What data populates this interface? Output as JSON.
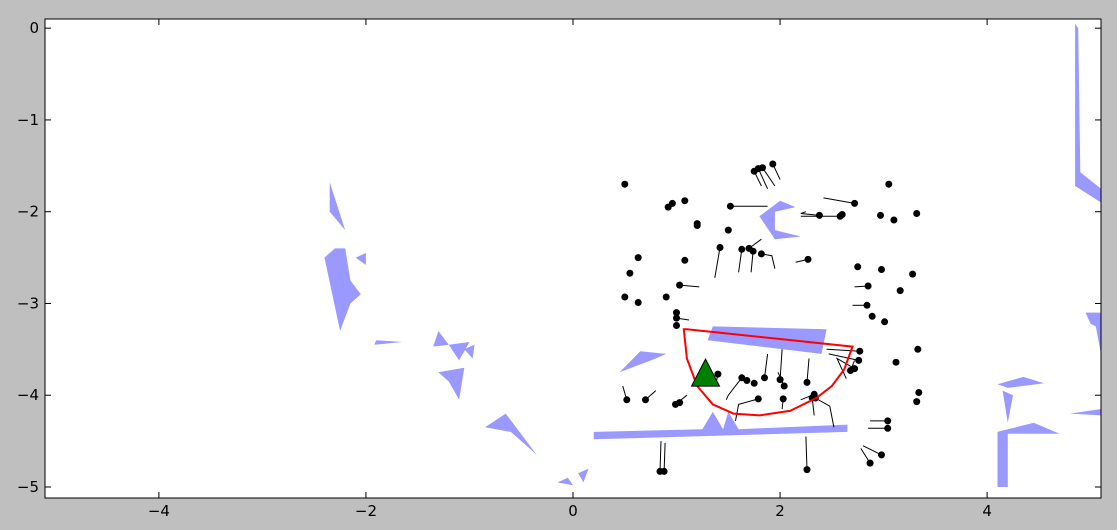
{
  "chart_data": {
    "type": "scatter",
    "title": "",
    "xlabel": "",
    "ylabel": "",
    "xlim": [
      -5.1,
      5.1
    ],
    "ylim": [
      -5.12,
      0.1
    ],
    "xticks": [
      -4,
      -2,
      0,
      2,
      4
    ],
    "xtick_labels": [
      "−4",
      "−2",
      "0",
      "2",
      "4"
    ],
    "yticks": [
      0,
      -1,
      -2,
      -3,
      -4,
      -5
    ],
    "ytick_labels": [
      "0",
      "−1",
      "−2",
      "−3",
      "−4",
      "−5"
    ],
    "grid": false,
    "colors": {
      "obstacle": "#9999ff",
      "boundary": "#ff0000",
      "agent": "#008000",
      "pedestrian": "#000000",
      "figure_bg": "#bfbfbf",
      "axes_bg": "#ffffff"
    },
    "obstacles": [
      [
        [
          -2.35,
          -1.68
        ],
        [
          -2.2,
          -2.2
        ],
        [
          -2.35,
          -2.0
        ]
      ],
      [
        [
          -2.3,
          -2.4
        ],
        [
          -2.2,
          -2.4
        ],
        [
          -2.15,
          -2.75
        ],
        [
          -2.05,
          -2.9
        ],
        [
          -2.15,
          -3.0
        ],
        [
          -2.25,
          -3.3
        ],
        [
          -2.4,
          -2.5
        ]
      ],
      [
        [
          -2.1,
          -2.5
        ],
        [
          -2.0,
          -2.45
        ],
        [
          -2.0,
          -2.58
        ]
      ],
      [
        [
          -1.9,
          -3.4
        ],
        [
          -1.65,
          -3.42
        ],
        [
          -1.92,
          -3.45
        ]
      ],
      [
        [
          -1.3,
          -3.3
        ],
        [
          -1.2,
          -3.45
        ],
        [
          -1.35,
          -3.47
        ]
      ],
      [
        [
          -1.2,
          -3.45
        ],
        [
          -1.0,
          -3.42
        ],
        [
          -1.1,
          -3.62
        ]
      ],
      [
        [
          -1.05,
          -3.5
        ],
        [
          -0.95,
          -3.45
        ],
        [
          -0.97,
          -3.6
        ]
      ],
      [
        [
          -1.3,
          -3.75
        ],
        [
          -1.05,
          -3.7
        ],
        [
          -1.1,
          -4.05
        ],
        [
          -1.2,
          -3.85
        ]
      ],
      [
        [
          -0.85,
          -4.35
        ],
        [
          -0.65,
          -4.2
        ],
        [
          -0.35,
          -4.65
        ],
        [
          -0.6,
          -4.4
        ]
      ],
      [
        [
          -0.15,
          -4.95
        ],
        [
          -0.05,
          -4.9
        ],
        [
          0.0,
          -4.98
        ]
      ],
      [
        [
          0.05,
          -4.85
        ],
        [
          0.15,
          -4.8
        ],
        [
          0.1,
          -4.95
        ]
      ],
      [
        [
          0.45,
          -3.75
        ],
        [
          0.65,
          -3.52
        ],
        [
          0.9,
          -3.55
        ],
        [
          0.8,
          -3.6
        ]
      ],
      [
        [
          0.2,
          -4.4
        ],
        [
          1.25,
          -4.37
        ],
        [
          1.35,
          -4.18
        ],
        [
          1.45,
          -4.37
        ],
        [
          1.5,
          -4.18
        ],
        [
          1.6,
          -4.37
        ],
        [
          2.65,
          -4.32
        ],
        [
          2.65,
          -4.4
        ],
        [
          0.2,
          -4.48
        ]
      ],
      [
        [
          1.35,
          -3.25
        ],
        [
          2.45,
          -3.28
        ],
        [
          2.4,
          -3.55
        ],
        [
          1.3,
          -3.4
        ]
      ],
      [
        [
          1.8,
          -2.05
        ],
        [
          2.0,
          -1.88
        ],
        [
          2.15,
          -1.95
        ],
        [
          1.95,
          -2.0
        ],
        [
          1.95,
          -2.2
        ],
        [
          2.2,
          -2.27
        ],
        [
          1.95,
          -2.3
        ]
      ],
      [
        [
          4.85,
          0.05
        ],
        [
          4.88,
          0.0
        ],
        [
          4.9,
          -1.57
        ],
        [
          5.1,
          -1.75
        ],
        [
          5.1,
          -1.9
        ],
        [
          4.85,
          -1.72
        ]
      ],
      [
        [
          4.95,
          -3.1
        ],
        [
          5.1,
          -3.1
        ],
        [
          5.1,
          -3.55
        ],
        [
          5.05,
          -3.25
        ],
        [
          5.0,
          -3.22
        ]
      ],
      [
        [
          4.1,
          -3.88
        ],
        [
          4.35,
          -3.8
        ],
        [
          4.55,
          -3.87
        ],
        [
          4.2,
          -3.92
        ]
      ],
      [
        [
          4.15,
          -3.95
        ],
        [
          4.25,
          -4.0
        ],
        [
          4.2,
          -4.3
        ]
      ],
      [
        [
          4.1,
          -4.4
        ],
        [
          4.45,
          -4.3
        ],
        [
          4.7,
          -4.42
        ],
        [
          4.2,
          -4.42
        ],
        [
          4.2,
          -5.0
        ],
        [
          4.1,
          -5.0
        ]
      ],
      [
        [
          4.8,
          -4.2
        ],
        [
          5.1,
          -4.15
        ],
        [
          5.1,
          -4.22
        ]
      ]
    ],
    "boundary": [
      [
        1.1,
        -3.28
      ],
      [
        2.7,
        -3.47
      ],
      [
        2.62,
        -3.72
      ],
      [
        2.5,
        -3.9
      ],
      [
        2.35,
        -4.03
      ],
      [
        2.1,
        -4.17
      ],
      [
        1.8,
        -4.22
      ],
      [
        1.55,
        -4.2
      ],
      [
        1.35,
        -4.1
      ],
      [
        1.2,
        -3.9
      ],
      [
        1.1,
        -3.6
      ],
      [
        1.07,
        -3.28
      ]
    ],
    "agent": {
      "x": 1.28,
      "y": -3.77
    },
    "pedestrians": [
      {
        "x": 0.5,
        "y": -1.7
      },
      {
        "x": 0.5,
        "y": -2.93
      },
      {
        "x": 0.55,
        "y": -2.67
      },
      {
        "x": 0.63,
        "y": -2.5
      },
      {
        "x": 0.63,
        "y": -2.99
      },
      {
        "x": 0.52,
        "y": -4.05,
        "trail": [
          [
            0.48,
            -3.9
          ]
        ]
      },
      {
        "x": 0.7,
        "y": -4.05,
        "trail": [
          [
            0.8,
            -3.95
          ]
        ]
      },
      {
        "x": 0.92,
        "y": -1.95
      },
      {
        "x": 0.96,
        "y": -1.91
      },
      {
        "x": 1.08,
        "y": -1.88
      },
      {
        "x": 1.2,
        "y": -2.13
      },
      {
        "x": 1.2,
        "y": -2.15
      },
      {
        "x": 1.08,
        "y": -2.53
      },
      {
        "x": 0.9,
        "y": -2.93
      },
      {
        "x": 1.0,
        "y": -3.1
      },
      {
        "x": 1.0,
        "y": -3.16,
        "trail": [
          [
            1.12,
            -3.18
          ]
        ]
      },
      {
        "x": 1.0,
        "y": -3.24
      },
      {
        "x": 1.03,
        "y": -2.8,
        "trail": [
          [
            1.22,
            -2.82
          ]
        ]
      },
      {
        "x": 0.99,
        "y": -4.1,
        "trail": [
          [
            1.1,
            -4.0
          ]
        ]
      },
      {
        "x": 1.03,
        "y": -4.08
      },
      {
        "x": 0.84,
        "y": -4.83,
        "trail": [
          [
            0.85,
            -4.5
          ]
        ]
      },
      {
        "x": 0.88,
        "y": -4.83,
        "trail": [
          [
            0.89,
            -4.52
          ]
        ]
      },
      {
        "x": 1.52,
        "y": -1.94,
        "trail": [
          [
            1.88,
            -1.94
          ]
        ]
      },
      {
        "x": 1.5,
        "y": -2.2
      },
      {
        "x": 1.42,
        "y": -2.39,
        "trail": [
          [
            1.37,
            -2.72
          ]
        ]
      },
      {
        "x": 1.63,
        "y": -2.41,
        "trail": [
          [
            1.6,
            -2.66
          ]
        ]
      },
      {
        "x": 1.7,
        "y": -2.4,
        "trail": [
          [
            1.82,
            -2.3
          ]
        ]
      },
      {
        "x": 1.74,
        "y": -2.43,
        "trail": [
          [
            1.72,
            -2.66
          ]
        ]
      },
      {
        "x": 1.82,
        "y": -2.46,
        "trail": [
          [
            1.92,
            -2.48
          ],
          [
            1.95,
            -2.62
          ]
        ]
      },
      {
        "x": 1.75,
        "y": -1.56,
        "trail": [
          [
            1.82,
            -1.72
          ]
        ]
      },
      {
        "x": 1.79,
        "y": -1.53,
        "trail": [
          [
            1.88,
            -1.75
          ]
        ]
      },
      {
        "x": 1.83,
        "y": -1.52,
        "trail": [
          [
            1.95,
            -1.72
          ]
        ]
      },
      {
        "x": 1.93,
        "y": -1.48,
        "trail": [
          [
            2.0,
            -1.65
          ]
        ]
      },
      {
        "x": 2.27,
        "y": -2.52,
        "trail": [
          [
            2.15,
            -2.55
          ]
        ]
      },
      {
        "x": 2.38,
        "y": -2.04,
        "trail": [
          [
            2.2,
            -2.02
          ],
          [
            2.25,
            -2.0
          ]
        ]
      },
      {
        "x": 2.58,
        "y": -2.05,
        "trail": [
          [
            2.2,
            -2.05
          ]
        ]
      },
      {
        "x": 2.6,
        "y": -2.03
      },
      {
        "x": 2.72,
        "y": -1.91,
        "trail": [
          [
            2.42,
            -1.85
          ]
        ]
      },
      {
        "x": 2.75,
        "y": -2.6
      },
      {
        "x": 2.85,
        "y": -2.81,
        "trail": [
          [
            2.72,
            -2.82
          ]
        ]
      },
      {
        "x": 2.84,
        "y": -3.02,
        "trail": [
          [
            2.7,
            -3.02
          ]
        ]
      },
      {
        "x": 2.89,
        "y": -3.14
      },
      {
        "x": 2.97,
        "y": -2.04
      },
      {
        "x": 2.98,
        "y": -2.63
      },
      {
        "x": 3.05,
        "y": -1.7
      },
      {
        "x": 3.1,
        "y": -2.09
      },
      {
        "x": 3.16,
        "y": -2.86
      },
      {
        "x": 3.01,
        "y": -3.2
      },
      {
        "x": 3.28,
        "y": -2.68
      },
      {
        "x": 3.32,
        "y": -2.02
      },
      {
        "x": 2.77,
        "y": -3.52,
        "trail": [
          [
            2.45,
            -3.5
          ]
        ]
      },
      {
        "x": 2.76,
        "y": -3.62,
        "trail": [
          [
            2.47,
            -3.55
          ]
        ]
      },
      {
        "x": 2.72,
        "y": -3.71,
        "trail": [
          [
            2.55,
            -3.6
          ],
          [
            2.64,
            -3.82
          ]
        ]
      },
      {
        "x": 2.68,
        "y": -3.73,
        "trail": [
          [
            2.72,
            -3.62
          ]
        ]
      },
      {
        "x": 3.12,
        "y": -3.64
      },
      {
        "x": 3.33,
        "y": -3.5
      },
      {
        "x": 3.34,
        "y": -3.97
      },
      {
        "x": 3.32,
        "y": -4.07
      },
      {
        "x": 3.04,
        "y": -4.28,
        "trail": [
          [
            2.87,
            -4.28
          ]
        ]
      },
      {
        "x": 3.04,
        "y": -4.36,
        "trail": [
          [
            2.85,
            -4.36
          ]
        ]
      },
      {
        "x": 2.98,
        "y": -4.65,
        "trail": [
          [
            2.8,
            -4.55
          ]
        ]
      },
      {
        "x": 2.87,
        "y": -4.74,
        "trail": [
          [
            2.78,
            -4.58
          ]
        ]
      },
      {
        "x": 2.26,
        "y": -4.81,
        "trail": [
          [
            2.25,
            -4.45
          ]
        ]
      },
      {
        "x": 1.4,
        "y": -3.77,
        "trail": [
          [
            1.38,
            -3.88
          ]
        ]
      },
      {
        "x": 1.63,
        "y": -3.81,
        "trail": [
          [
            1.5,
            -4.0
          ],
          [
            1.48,
            -4.05
          ]
        ]
      },
      {
        "x": 1.68,
        "y": -3.84
      },
      {
        "x": 1.75,
        "y": -3.87
      },
      {
        "x": 1.85,
        "y": -3.81,
        "trail": [
          [
            1.88,
            -3.55
          ]
        ]
      },
      {
        "x": 2.0,
        "y": -3.83,
        "trail": [
          [
            2.02,
            -3.5
          ]
        ]
      },
      {
        "x": 2.04,
        "y": -3.9,
        "trail": [
          [
            1.98,
            -3.75
          ]
        ]
      },
      {
        "x": 1.79,
        "y": -4.04,
        "trail": [
          [
            1.6,
            -4.1
          ],
          [
            1.57,
            -4.28
          ]
        ]
      },
      {
        "x": 2.03,
        "y": -4.04,
        "trail": [
          [
            2.02,
            -4.15
          ]
        ]
      },
      {
        "x": 2.26,
        "y": -3.86,
        "trail": [
          [
            2.28,
            -3.6
          ]
        ]
      },
      {
        "x": 2.34,
        "y": -4.03,
        "trail": [
          [
            2.48,
            -4.12
          ],
          [
            2.52,
            -4.35
          ]
        ]
      },
      {
        "x": 2.31,
        "y": -4.03,
        "trail": [
          [
            2.33,
            -4.22
          ]
        ]
      },
      {
        "x": 2.33,
        "y": -3.99,
        "trail": [
          [
            2.2,
            -4.05
          ]
        ]
      }
    ]
  }
}
